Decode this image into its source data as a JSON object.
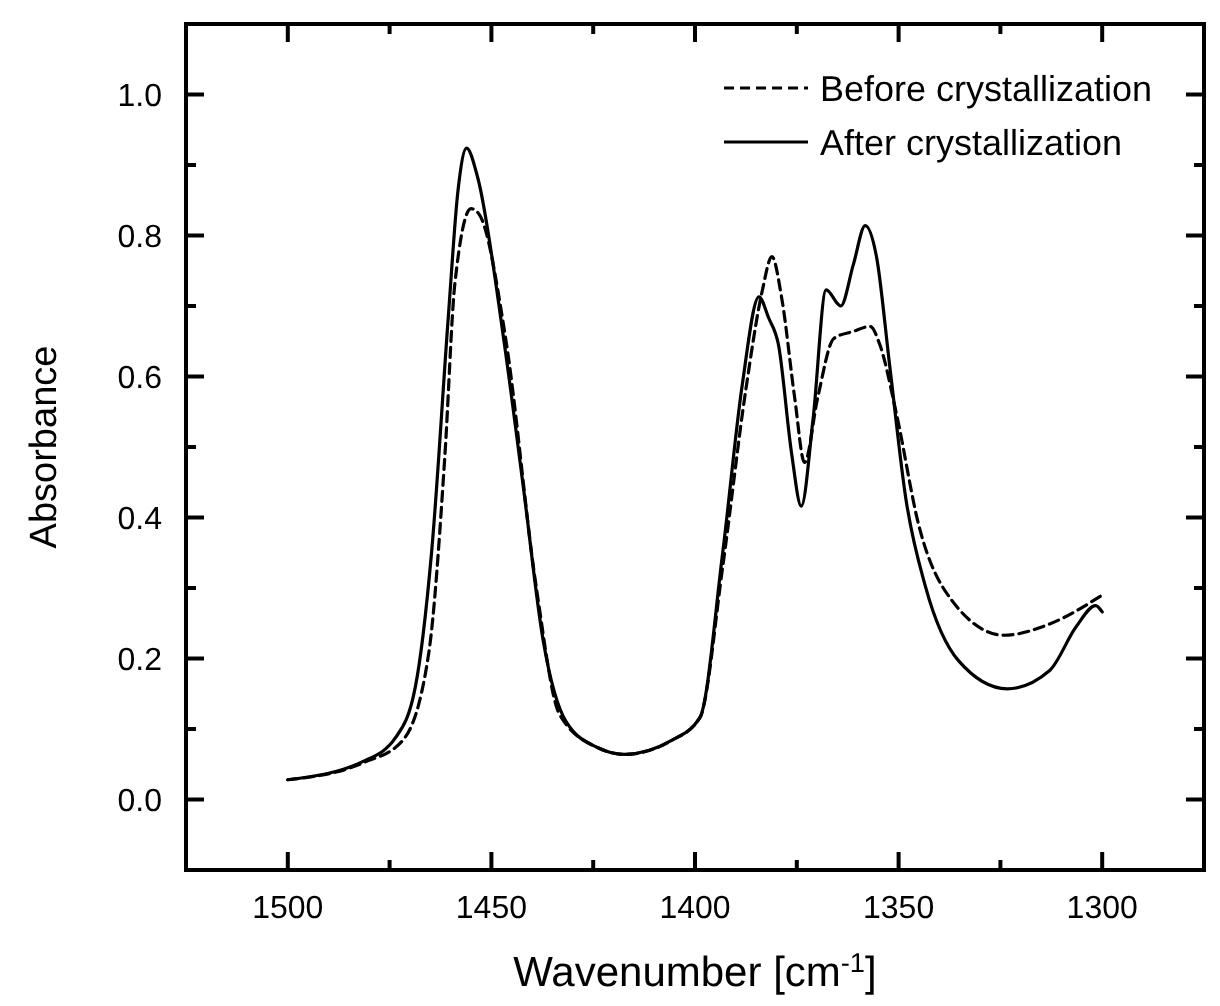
{
  "chart_data": {
    "type": "line",
    "xlabel": "Wavenumber [cm$^{-1}$]",
    "ylabel": "Absorbance",
    "xlim": [
      1525,
      1275
    ],
    "xticks": [
      1500,
      {
        "value": 1475,
        "label": null
      },
      1450,
      {
        "value": 1425,
        "label": null
      },
      1400,
      {
        "value": 1375,
        "label": null
      },
      1350,
      {
        "value": 1325,
        "label": null
      },
      1300
    ],
    "ylim": [
      -0.1,
      1.1
    ],
    "yticks": [
      {
        "value": 0,
        "label": "0.0"
      },
      {
        "value": 0.1,
        "label": null
      },
      {
        "value": 0.2,
        "label": "0.2"
      },
      {
        "value": 0.3,
        "label": null
      },
      {
        "value": 0.4,
        "label": "0.4"
      },
      {
        "value": 0.5,
        "label": null
      },
      {
        "value": 0.6,
        "label": "0.6"
      },
      {
        "value": 0.7,
        "label": null
      },
      {
        "value": 0.8,
        "label": "0.8"
      },
      {
        "value": 0.9,
        "label": null
      },
      {
        "value": 1.0,
        "label": "1.0"
      }
    ],
    "legend": "top right",
    "grid": false,
    "series": [
      {
        "name": "Before crystallization",
        "color": "#000000",
        "line_style": "dashed",
        "x": [
          1500,
          1481.5,
          1471.9,
          1465.4,
          1461.4,
          1459,
          1455,
          1453,
          1446.5,
          1439,
          1433.3,
          1423.7,
          1417.3,
          1406,
          1398.8,
          1393.2,
          1387.6,
          1383.5,
          1381.1,
          1378.7,
          1375.5,
          1373.1,
          1369.9,
          1365.9,
          1361.1,
          1357,
          1354.6,
          1350.6,
          1345,
          1337,
          1324.1,
          1312.9,
          1300
        ],
        "values": [
          0.028,
          0.052,
          0.083,
          0.207,
          0.49,
          0.73,
          0.838,
          0.83,
          0.654,
          0.302,
          0.121,
          0.073,
          0.064,
          0.083,
          0.116,
          0.33,
          0.578,
          0.721,
          0.77,
          0.711,
          0.569,
          0.478,
          0.569,
          0.654,
          0.664,
          0.671,
          0.645,
          0.549,
          0.388,
          0.283,
          0.233,
          0.249,
          0.29
        ]
      },
      {
        "name": "After crystallization",
        "color": "#000000",
        "line_style": "solid",
        "x": [
          1500,
          1481.5,
          1473.5,
          1468.7,
          1464.7,
          1460.6,
          1458.2,
          1456.1,
          1453.4,
          1447,
          1442.2,
          1437.3,
          1431.7,
          1423.7,
          1417.3,
          1406,
          1398.8,
          1393.2,
          1388.4,
          1384.3,
          1381.9,
          1379.5,
          1376.3,
          1373.9,
          1371,
          1367.8,
          1364.2,
          1361.1,
          1358.2,
          1355.4,
          1352.2,
          1348.2,
          1343.4,
          1335.3,
          1323.3,
          1312.9,
          1306.4,
          1301.6,
          1300
        ],
        "values": [
          0.028,
          0.054,
          0.088,
          0.159,
          0.35,
          0.683,
          0.864,
          0.924,
          0.883,
          0.654,
          0.445,
          0.226,
          0.111,
          0.073,
          0.064,
          0.083,
          0.116,
          0.35,
          0.588,
          0.713,
          0.683,
          0.645,
          0.492,
          0.416,
          0.54,
          0.723,
          0.7,
          0.759,
          0.814,
          0.769,
          0.616,
          0.426,
          0.302,
          0.197,
          0.157,
          0.183,
          0.245,
          0.275,
          0.266
        ]
      }
    ]
  }
}
